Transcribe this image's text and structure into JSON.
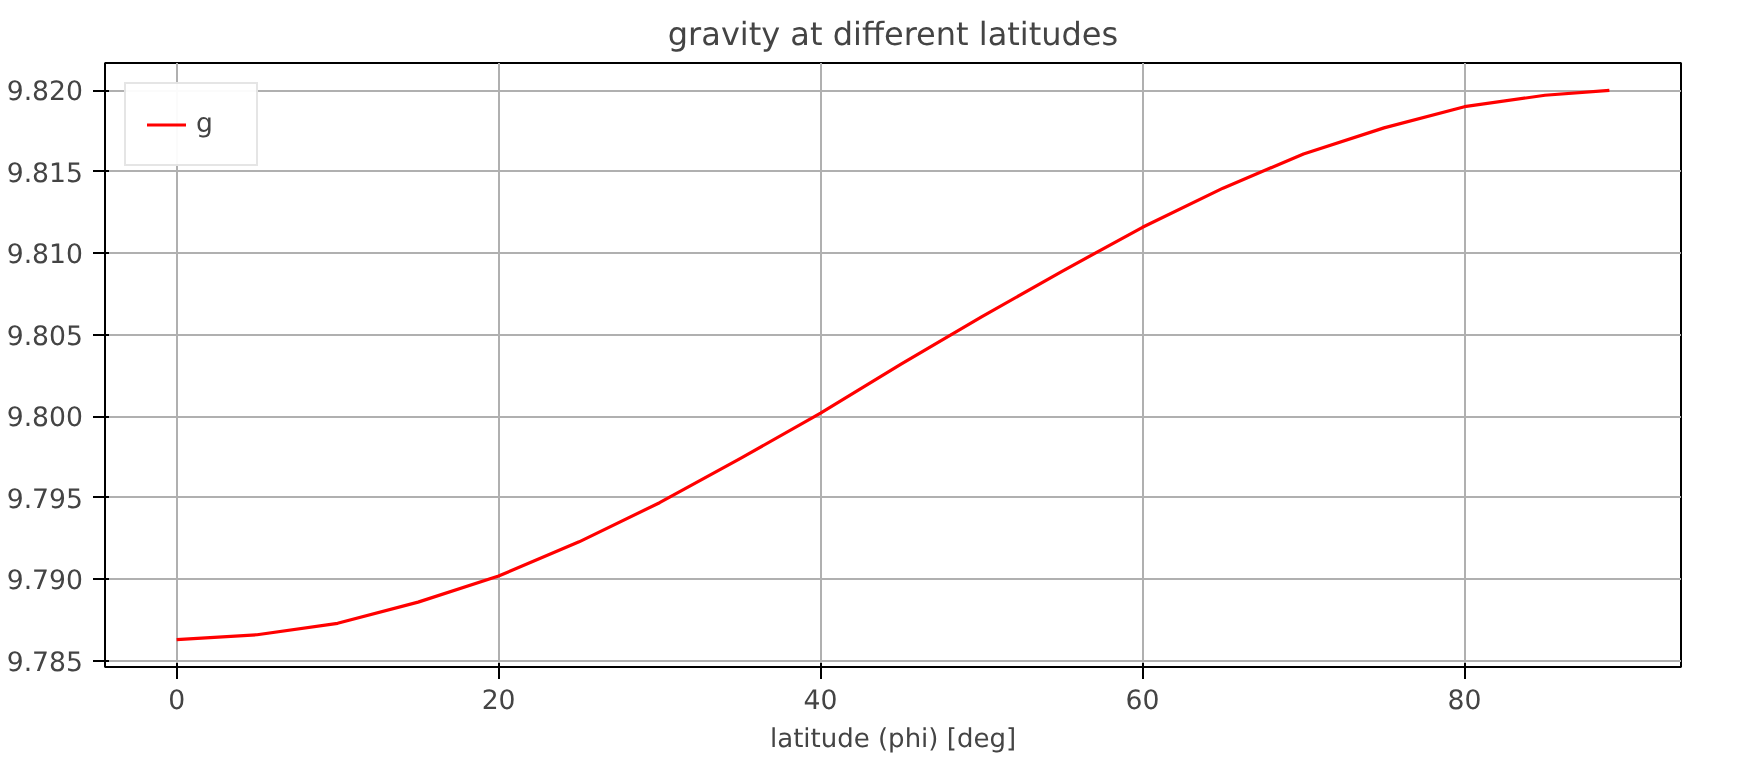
{
  "chart_data": {
    "type": "line",
    "title": "gravity at different latitudes",
    "xlabel": "latitude (phi) [deg]",
    "x": [
      0,
      5,
      10,
      15,
      20,
      25,
      30,
      35,
      40,
      45,
      50,
      55,
      60,
      65,
      70,
      75,
      80,
      85,
      89
    ],
    "series": [
      {
        "name": "g",
        "color": "#ff0000",
        "values": [
          9.7863,
          9.7866,
          9.7873,
          9.7886,
          9.7902,
          9.7923,
          9.7947,
          9.7974,
          9.8002,
          9.8032,
          9.8061,
          9.8089,
          9.8116,
          9.814,
          9.8161,
          9.8177,
          9.819,
          9.8197,
          9.82
        ]
      }
    ],
    "xlim": [
      -4.45,
      93.45
    ],
    "ylim": [
      9.78462,
      9.82168
    ],
    "xticks": [
      0,
      20,
      40,
      60,
      80
    ],
    "yticks": [
      {
        "value": 9.785,
        "label": "9.785"
      },
      {
        "value": 9.79,
        "label": "9.790"
      },
      {
        "value": 9.795,
        "label": "9.795"
      },
      {
        "value": 9.8,
        "label": "9.800"
      },
      {
        "value": 9.805,
        "label": "9.805"
      },
      {
        "value": 9.81,
        "label": "9.810"
      },
      {
        "value": 9.815,
        "label": "9.815"
      },
      {
        "value": 9.82,
        "label": "9.820"
      }
    ],
    "grid": true,
    "legend": "top left",
    "marker": "none",
    "line_style": "solid"
  }
}
